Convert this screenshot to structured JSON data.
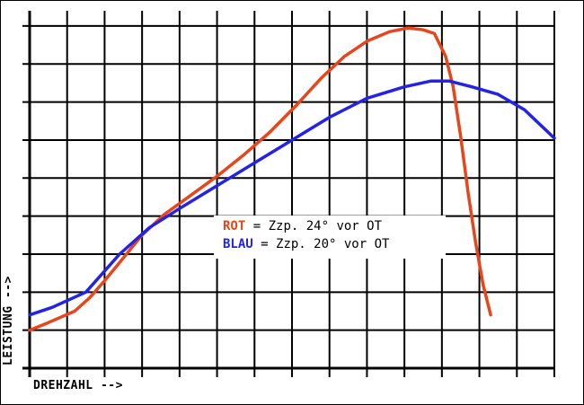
{
  "chart_data": {
    "type": "line",
    "xlabel": "DREHZAHL -->",
    "ylabel": "LEISTUNG -->",
    "xlim": [
      0,
      14
    ],
    "ylim": [
      0,
      9.4
    ],
    "grid": true,
    "legend_position": "center",
    "series": [
      {
        "name": "ROT",
        "color": "#e8451a",
        "legend_text": "= Zzp. 24° vor OT",
        "x": [
          0,
          0.5,
          1.2,
          1.6,
          2.0,
          2.5,
          3.0,
          3.6,
          4.3,
          5.0,
          5.7,
          6.4,
          7.1,
          7.8,
          8.4,
          9.0,
          9.6,
          10.1,
          10.5,
          10.8,
          11.1,
          11.3,
          11.5,
          11.7,
          11.9,
          12.1,
          12.3
        ],
        "y": [
          1.0,
          1.2,
          1.5,
          1.85,
          2.3,
          2.9,
          3.5,
          4.05,
          4.55,
          5.05,
          5.6,
          6.2,
          6.9,
          7.65,
          8.2,
          8.6,
          8.85,
          8.95,
          8.9,
          8.8,
          8.2,
          7.4,
          6.1,
          4.6,
          3.3,
          2.2,
          1.4
        ]
      },
      {
        "name": "BLAU",
        "color": "#2323e6",
        "legend_text": "= Zzp. 20° vor OT",
        "x": [
          0,
          0.6,
          1.5,
          2.4,
          3.2,
          4.0,
          5.0,
          6.0,
          7.0,
          8.0,
          9.0,
          10.0,
          10.7,
          11.2,
          11.8,
          12.5,
          13.2,
          14.0
        ],
        "y": [
          1.4,
          1.6,
          2.0,
          3.0,
          3.7,
          4.2,
          4.8,
          5.4,
          6.0,
          6.6,
          7.1,
          7.4,
          7.55,
          7.55,
          7.4,
          7.2,
          6.8,
          6.05
        ]
      }
    ]
  }
}
